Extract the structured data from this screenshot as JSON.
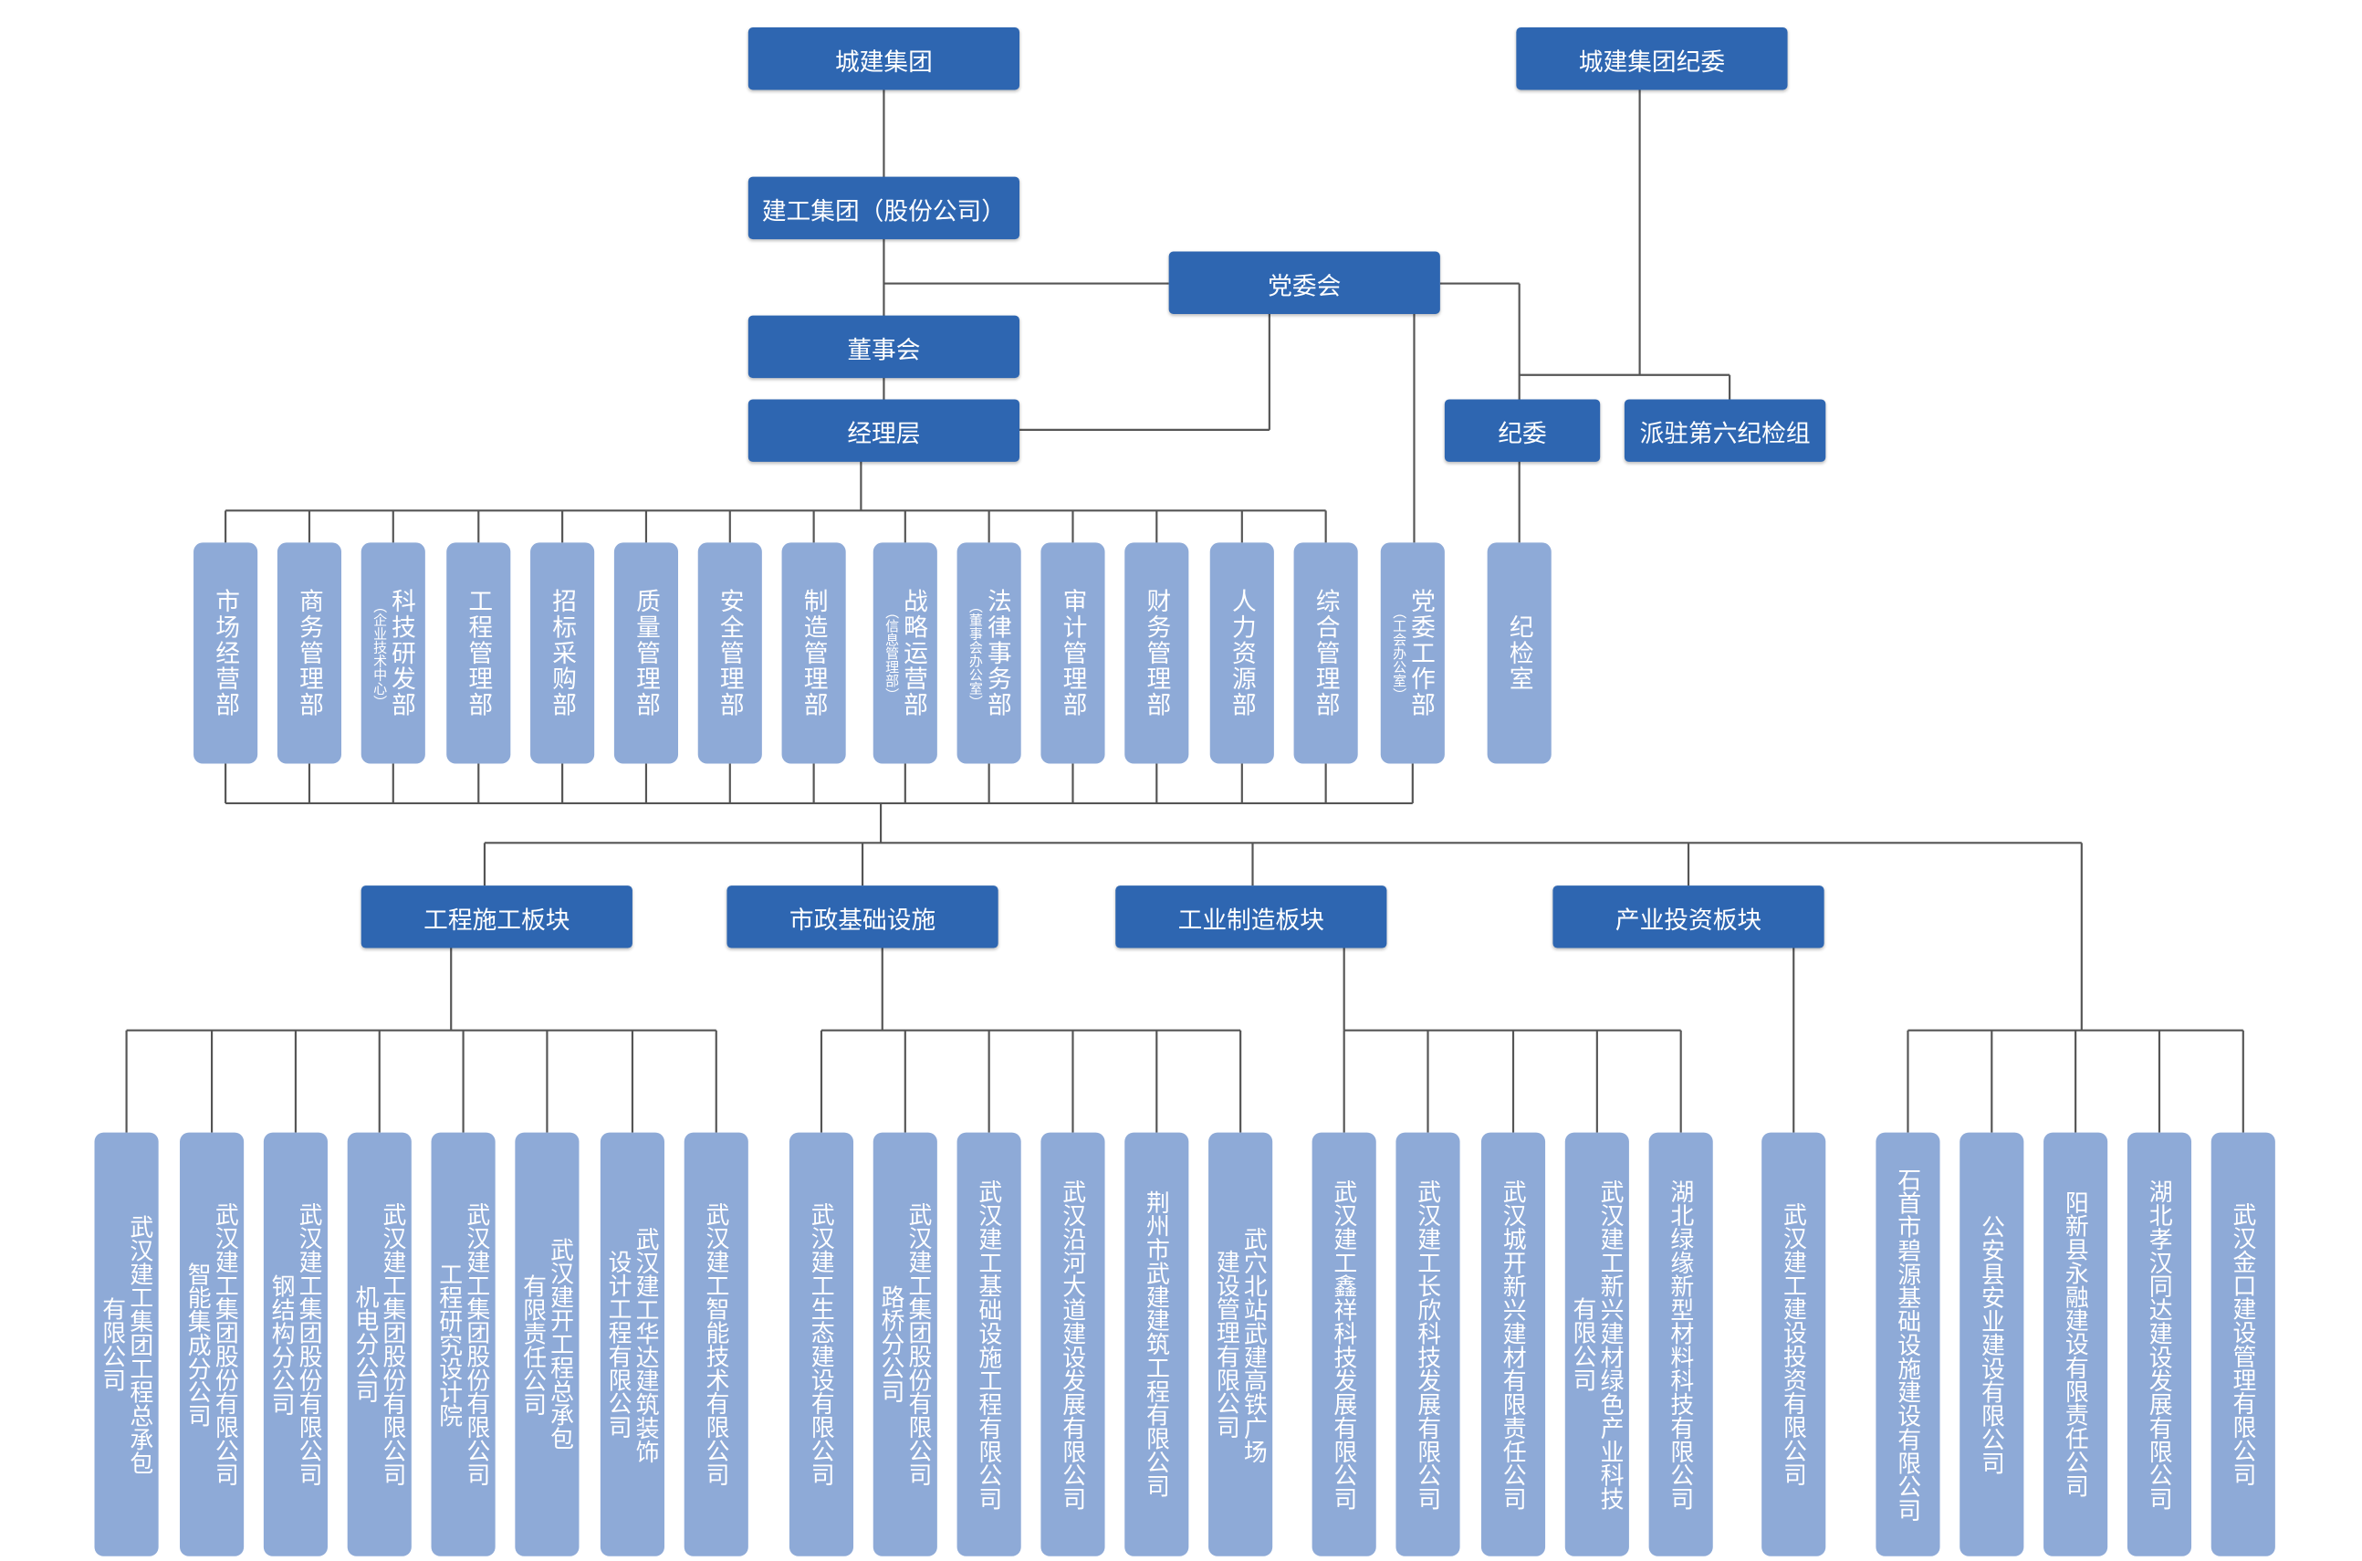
{
  "colors": {
    "primary_box": "#2e66b1",
    "secondary_box": "#8eaad7",
    "line": "#555555",
    "text": "#ffffff"
  },
  "top": {
    "group": "城建集团",
    "discipline_committee": "城建集团纪委",
    "company": "建工集团（股份公司）",
    "party_committee": "党委会",
    "board": "董事会",
    "management": "经理层",
    "discipline": "纪委",
    "inspection_group": "派驻第六纪检组"
  },
  "departments": [
    {
      "name": "市场经营部",
      "note": ""
    },
    {
      "name": "商务管理部",
      "note": ""
    },
    {
      "name": "科技研发部",
      "note": "（企业技术中心）"
    },
    {
      "name": "工程管理部",
      "note": ""
    },
    {
      "name": "招标采购部",
      "note": ""
    },
    {
      "name": "质量管理部",
      "note": ""
    },
    {
      "name": "安全管理部",
      "note": ""
    },
    {
      "name": "制造管理部",
      "note": ""
    },
    {
      "name": "战略运营部",
      "note": "（信息管理部）"
    },
    {
      "name": "法律事务部",
      "note": "（董事会办公室）"
    },
    {
      "name": "审计管理部",
      "note": ""
    },
    {
      "name": "财务管理部",
      "note": ""
    },
    {
      "name": "人力资源部",
      "note": ""
    },
    {
      "name": "综合管理部",
      "note": ""
    },
    {
      "name": "党委工作部",
      "note": "（工会办公室）"
    },
    {
      "name": "纪检室",
      "note": ""
    }
  ],
  "sectors": [
    {
      "name": "工程施工板块",
      "companies": [
        "武汉建工集团工程总承包\n有限公司",
        "武汉建工集团股份有限公司\n智能集成分公司",
        "武汉建工集团股份有限公司\n钢结构分公司",
        "武汉建工集团股份有限公司\n机电分公司",
        "武汉建工集团股份有限公司\n工程研究设计院",
        "武汉建开工程总承包\n有限责任公司",
        "武汉建工华达建筑装饰\n设计工程有限公司",
        "武汉建工智能技术有限公司"
      ]
    },
    {
      "name": "市政基础设施",
      "companies": [
        "武汉建工生态建设有限公司",
        "武汉建工集团股份有限公司\n路桥分公司",
        "武汉建工基础设施工程有限公司",
        "武汉沿河大道建设发展有限公司",
        "荆州市武建建筑工程有限公司",
        "武穴北站武建高铁广场\n建设管理有限公司"
      ]
    },
    {
      "name": "工业制造板块",
      "companies": [
        "武汉建工鑫祥科技发展有限公司",
        "武汉建工长欣科技发展有限公司",
        "武汉城开新兴建材有限责任公司",
        "武汉建工新兴建材绿色产业科技\n有限公司",
        "湖北绿缘新型材料科技有限公司"
      ]
    },
    {
      "name": "产业投资板块",
      "companies": [
        "武汉建工建设投资有限公司"
      ]
    },
    {
      "name": "",
      "companies": [
        "石首市碧源基础设施建设有限公司",
        "公安县安业建设有限公司",
        "阳新县永融建设有限责任公司",
        "湖北孝汉同达建设发展有限公司",
        "武汉金口建设管理有限公司"
      ]
    }
  ]
}
